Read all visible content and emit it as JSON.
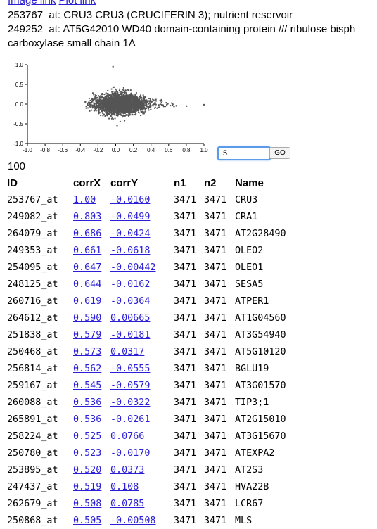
{
  "links": {
    "image": "Image link",
    "plot": "Plot link"
  },
  "genes": [
    "253767_at: CRU3 CRU3 (CRUCIFERIN 3); nutrient reservoir",
    "249252_at: AT5G42010 WD40 domain-containing protein /// ribulose bisph",
    "carboxylase small chain 1A"
  ],
  "chart_data": {
    "type": "scatter",
    "xlim": [
      -1.0,
      1.0
    ],
    "ylim": [
      -1.0,
      1.0
    ],
    "x_ticks": [
      "-1.0",
      "-0.8",
      "-0.6",
      "-0.4",
      "-0.2",
      "0.0",
      "0.2",
      "0.4",
      "0.6",
      "0.8",
      "1.0"
    ],
    "y_ticks": [
      "1.0",
      "0.5",
      "0.0",
      "-0.5",
      "-1.0"
    ],
    "point_color": "#555555",
    "points_note_visible": false,
    "points": [
      [
        1.0,
        -0.016
      ],
      [
        0.803,
        -0.0499
      ],
      [
        0.686,
        -0.0424
      ],
      [
        0.661,
        -0.0618
      ],
      [
        0.647,
        -0.00442
      ],
      [
        0.644,
        -0.0162
      ],
      [
        0.619,
        -0.0364
      ],
      [
        0.59,
        0.00665
      ],
      [
        0.579,
        -0.0181
      ],
      [
        0.573,
        0.0317
      ],
      [
        0.562,
        -0.0555
      ],
      [
        0.545,
        -0.0579
      ],
      [
        0.536,
        -0.0322
      ],
      [
        0.536,
        -0.0261
      ],
      [
        0.525,
        0.0766
      ],
      [
        0.523,
        -0.017
      ],
      [
        0.52,
        0.0373
      ],
      [
        0.519,
        0.108
      ],
      [
        0.508,
        0.0785
      ],
      [
        0.505,
        -0.00508
      ],
      [
        -0.03,
        0.95
      ]
    ]
  },
  "form": {
    "threshold_value": ".5",
    "go_label": "GO"
  },
  "result_count": "100",
  "table": {
    "headers": [
      "ID",
      "corrX",
      "corrY",
      "n1",
      "n2",
      "Name"
    ],
    "rows": [
      [
        "253767_at",
        "1.00",
        "-0.0160",
        "3471",
        "3471",
        "CRU3"
      ],
      [
        "249082_at",
        "0.803",
        "-0.0499",
        "3471",
        "3471",
        "CRA1"
      ],
      [
        "264079_at",
        "0.686",
        "-0.0424",
        "3471",
        "3471",
        "AT2G28490"
      ],
      [
        "249353_at",
        "0.661",
        "-0.0618",
        "3471",
        "3471",
        "OLEO2"
      ],
      [
        "254095_at",
        "0.647",
        "-0.00442",
        "3471",
        "3471",
        "OLEO1"
      ],
      [
        "248125_at",
        "0.644",
        "-0.0162",
        "3471",
        "3471",
        "SESA5"
      ],
      [
        "260716_at",
        "0.619",
        "-0.0364",
        "3471",
        "3471",
        "ATPER1"
      ],
      [
        "264612_at",
        "0.590",
        "0.00665",
        "3471",
        "3471",
        "AT1G04560"
      ],
      [
        "251838_at",
        "0.579",
        "-0.0181",
        "3471",
        "3471",
        "AT3G54940"
      ],
      [
        "250468_at",
        "0.573",
        "0.0317",
        "3471",
        "3471",
        "AT5G10120"
      ],
      [
        "256814_at",
        "0.562",
        "-0.0555",
        "3471",
        "3471",
        "BGLU19"
      ],
      [
        "259167_at",
        "0.545",
        "-0.0579",
        "3471",
        "3471",
        "AT3G01570"
      ],
      [
        "260088_at",
        "0.536",
        "-0.0322",
        "3471",
        "3471",
        "TIP3;1"
      ],
      [
        "265891_at",
        "0.536",
        "-0.0261",
        "3471",
        "3471",
        "AT2G15010"
      ],
      [
        "258224_at",
        "0.525",
        "0.0766",
        "3471",
        "3471",
        "AT3G15670"
      ],
      [
        "250780_at",
        "0.523",
        "-0.0170",
        "3471",
        "3471",
        "ATEXPA2"
      ],
      [
        "253895_at",
        "0.520",
        "0.0373",
        "3471",
        "3471",
        "AT2S3"
      ],
      [
        "247437_at",
        "0.519",
        "0.108",
        "3471",
        "3471",
        "HVA22B"
      ],
      [
        "262679_at",
        "0.508",
        "0.0785",
        "3471",
        "3471",
        "LCR67"
      ],
      [
        "250868_at",
        "0.505",
        "-0.00508",
        "3471",
        "3471",
        "MLS"
      ]
    ]
  }
}
